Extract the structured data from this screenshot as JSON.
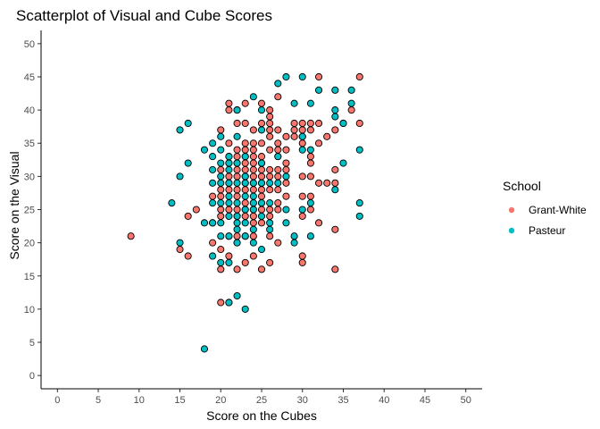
{
  "chart_data": {
    "type": "scatter",
    "title": "Scatterplot of Visual and Cube Scores",
    "xlabel": "Score on the Cubes",
    "ylabel": "Score on the Visual",
    "xlim": [
      -2,
      52
    ],
    "ylim": [
      -2,
      52
    ],
    "xticks": [
      "0",
      "5",
      "10",
      "15",
      "20",
      "25",
      "30",
      "35",
      "40",
      "45",
      "50"
    ],
    "yticks": [
      "0",
      "5",
      "10",
      "15",
      "20",
      "25",
      "30",
      "35",
      "40",
      "45",
      "50"
    ],
    "grid": false,
    "legend": {
      "title": "School",
      "position": "right"
    },
    "series": [
      {
        "name": "Grant-White",
        "color": "#F8766D",
        "points": [
          [
            9,
            21
          ],
          [
            15,
            19
          ],
          [
            16,
            18
          ],
          [
            16,
            24
          ],
          [
            17,
            25
          ],
          [
            19,
            20
          ],
          [
            19,
            23
          ],
          [
            19,
            27
          ],
          [
            20,
            11
          ],
          [
            20,
            16
          ],
          [
            20,
            19
          ],
          [
            20,
            24
          ],
          [
            20,
            25
          ],
          [
            20,
            27
          ],
          [
            20,
            28
          ],
          [
            20,
            31
          ],
          [
            20,
            37
          ],
          [
            21,
            11
          ],
          [
            21,
            18
          ],
          [
            21,
            21
          ],
          [
            21,
            25
          ],
          [
            21,
            28
          ],
          [
            21,
            29
          ],
          [
            21,
            30
          ],
          [
            21,
            32
          ],
          [
            21,
            33
          ],
          [
            21,
            35
          ],
          [
            21,
            40
          ],
          [
            21,
            41
          ],
          [
            22,
            16
          ],
          [
            22,
            20
          ],
          [
            22,
            21
          ],
          [
            22,
            24
          ],
          [
            22,
            25
          ],
          [
            22,
            27
          ],
          [
            22,
            28
          ],
          [
            22,
            30
          ],
          [
            22,
            31
          ],
          [
            22,
            32
          ],
          [
            22,
            33
          ],
          [
            22,
            34
          ],
          [
            22,
            38
          ],
          [
            22,
            40
          ],
          [
            23,
            17
          ],
          [
            23,
            21
          ],
          [
            23,
            24
          ],
          [
            23,
            25
          ],
          [
            23,
            26
          ],
          [
            23,
            28
          ],
          [
            23,
            29
          ],
          [
            23,
            30
          ],
          [
            23,
            31
          ],
          [
            23,
            32
          ],
          [
            23,
            33
          ],
          [
            23,
            34
          ],
          [
            23,
            35
          ],
          [
            23,
            38
          ],
          [
            23,
            41
          ],
          [
            24,
            18
          ],
          [
            24,
            21
          ],
          [
            24,
            23
          ],
          [
            24,
            24
          ],
          [
            24,
            25
          ],
          [
            24,
            26
          ],
          [
            24,
            28
          ],
          [
            24,
            29
          ],
          [
            24,
            30
          ],
          [
            24,
            31
          ],
          [
            24,
            32
          ],
          [
            24,
            33
          ],
          [
            24,
            34
          ],
          [
            24,
            35
          ],
          [
            24,
            37
          ],
          [
            25,
            16
          ],
          [
            25,
            23
          ],
          [
            25,
            25
          ],
          [
            25,
            26
          ],
          [
            25,
            27
          ],
          [
            25,
            28
          ],
          [
            25,
            29
          ],
          [
            25,
            30
          ],
          [
            25,
            31
          ],
          [
            25,
            32
          ],
          [
            25,
            33
          ],
          [
            25,
            35
          ],
          [
            25,
            38
          ],
          [
            25,
            41
          ],
          [
            26,
            17
          ],
          [
            26,
            21
          ],
          [
            26,
            24
          ],
          [
            26,
            25
          ],
          [
            26,
            28
          ],
          [
            26,
            30
          ],
          [
            26,
            31
          ],
          [
            26,
            34
          ],
          [
            26,
            36
          ],
          [
            26,
            37
          ],
          [
            26,
            38
          ],
          [
            26,
            39
          ],
          [
            26,
            40
          ],
          [
            27,
            20
          ],
          [
            27,
            25
          ],
          [
            27,
            26
          ],
          [
            27,
            28
          ],
          [
            27,
            30
          ],
          [
            27,
            31
          ],
          [
            27,
            33
          ],
          [
            27,
            34
          ],
          [
            27,
            35
          ],
          [
            27,
            37
          ],
          [
            27,
            42
          ],
          [
            28,
            27
          ],
          [
            28,
            29
          ],
          [
            28,
            31
          ],
          [
            28,
            32
          ],
          [
            28,
            34
          ],
          [
            28,
            36
          ],
          [
            29,
            36
          ],
          [
            29,
            37
          ],
          [
            29,
            38
          ],
          [
            30,
            17
          ],
          [
            30,
            18
          ],
          [
            30,
            24
          ],
          [
            30,
            27
          ],
          [
            30,
            30
          ],
          [
            30,
            35
          ],
          [
            30,
            36
          ],
          [
            30,
            37
          ],
          [
            30,
            38
          ],
          [
            31,
            25
          ],
          [
            31,
            27
          ],
          [
            31,
            30
          ],
          [
            31,
            32
          ],
          [
            31,
            33
          ],
          [
            31,
            37
          ],
          [
            31,
            38
          ],
          [
            32,
            23
          ],
          [
            32,
            29
          ],
          [
            32,
            35
          ],
          [
            32,
            38
          ],
          [
            32,
            45
          ],
          [
            33,
            29
          ],
          [
            33,
            36
          ],
          [
            34,
            16
          ],
          [
            34,
            22
          ],
          [
            34,
            29
          ],
          [
            34,
            31
          ],
          [
            34,
            37
          ],
          [
            35,
            38
          ],
          [
            36,
            40
          ],
          [
            37,
            38
          ],
          [
            37,
            45
          ]
        ]
      },
      {
        "name": "Pasteur",
        "color": "#00BFC4",
        "points": [
          [
            14,
            26
          ],
          [
            15,
            20
          ],
          [
            15,
            30
          ],
          [
            15,
            37
          ],
          [
            16,
            32
          ],
          [
            16,
            38
          ],
          [
            18,
            4
          ],
          [
            18,
            23
          ],
          [
            18,
            34
          ],
          [
            19,
            18
          ],
          [
            19,
            23
          ],
          [
            19,
            26
          ],
          [
            19,
            29
          ],
          [
            19,
            31
          ],
          [
            19,
            33
          ],
          [
            19,
            35
          ],
          [
            20,
            17
          ],
          [
            20,
            21
          ],
          [
            20,
            23
          ],
          [
            20,
            26
          ],
          [
            20,
            29
          ],
          [
            20,
            30
          ],
          [
            20,
            32
          ],
          [
            20,
            34
          ],
          [
            20,
            36
          ],
          [
            21,
            11
          ],
          [
            21,
            17
          ],
          [
            21,
            21
          ],
          [
            21,
            24
          ],
          [
            21,
            26
          ],
          [
            21,
            27
          ],
          [
            21,
            29
          ],
          [
            21,
            31
          ],
          [
            21,
            32
          ],
          [
            21,
            33
          ],
          [
            22,
            12
          ],
          [
            22,
            20
          ],
          [
            22,
            22
          ],
          [
            22,
            23
          ],
          [
            22,
            24
          ],
          [
            22,
            26
          ],
          [
            22,
            29
          ],
          [
            22,
            32
          ],
          [
            22,
            36
          ],
          [
            22,
            40
          ],
          [
            23,
            10
          ],
          [
            23,
            21
          ],
          [
            23,
            23
          ],
          [
            23,
            25
          ],
          [
            23,
            27
          ],
          [
            23,
            29
          ],
          [
            23,
            30
          ],
          [
            23,
            33
          ],
          [
            24,
            20
          ],
          [
            24,
            22
          ],
          [
            24,
            25
          ],
          [
            24,
            26
          ],
          [
            24,
            27
          ],
          [
            24,
            29
          ],
          [
            24,
            42
          ],
          [
            25,
            19
          ],
          [
            25,
            24
          ],
          [
            25,
            26
          ],
          [
            25,
            29
          ],
          [
            25,
            32
          ],
          [
            25,
            37
          ],
          [
            25,
            40
          ],
          [
            26,
            22
          ],
          [
            26,
            23
          ],
          [
            26,
            26
          ],
          [
            26,
            29
          ],
          [
            27,
            44
          ],
          [
            27,
            29
          ],
          [
            27,
            33
          ],
          [
            28,
            23
          ],
          [
            28,
            25
          ],
          [
            28,
            30
          ],
          [
            28,
            45
          ],
          [
            29,
            20
          ],
          [
            29,
            21
          ],
          [
            29,
            41
          ],
          [
            30,
            25
          ],
          [
            30,
            34
          ],
          [
            30,
            36
          ],
          [
            30,
            45
          ],
          [
            31,
            21
          ],
          [
            31,
            26
          ],
          [
            31,
            34
          ],
          [
            31,
            41
          ],
          [
            32,
            43
          ],
          [
            34,
            28
          ],
          [
            34,
            39
          ],
          [
            34,
            40
          ],
          [
            34,
            43
          ],
          [
            35,
            32
          ],
          [
            35,
            38
          ],
          [
            36,
            41
          ],
          [
            36,
            43
          ],
          [
            37,
            24
          ],
          [
            37,
            26
          ],
          [
            37,
            34
          ]
        ]
      }
    ]
  }
}
